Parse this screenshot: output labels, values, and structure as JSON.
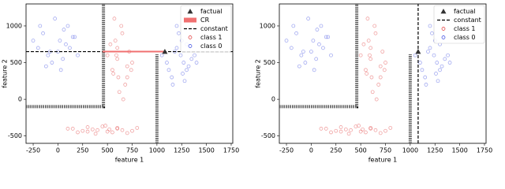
{
  "chart_data": [
    {
      "type": "scatter",
      "xlabel": "feature 1",
      "ylabel": "feature 2",
      "xlim": [
        -322,
        1766
      ],
      "ylim": [
        -600,
        1300
      ],
      "xticks": [
        -250,
        0,
        250,
        500,
        750,
        1000,
        1250,
        1500,
        1750
      ],
      "yticks": [
        -500,
        0,
        500,
        1000
      ],
      "legend": "upper right",
      "series": [
        {
          "name": "class 0",
          "color": "#3040e0",
          "style": "points",
          "x": [
            -150,
            -80,
            20,
            100,
            -200,
            50,
            150,
            -30,
            -120,
            80,
            200,
            -250,
            0,
            60,
            -60,
            120,
            -180,
            30,
            170,
            -100,
            1100,
            1200,
            1300,
            1250,
            1150,
            1350,
            1050,
            1280,
            1220,
            1320,
            1180,
            1400,
            1120,
            1260,
            1240,
            1300,
            1160,
            1380,
            1200,
            1270
          ],
          "y": [
            900,
            650,
            800,
            1000,
            700,
            550,
            850,
            1100,
            450,
            750,
            600,
            800,
            650,
            950,
            500,
            700,
            1000,
            400,
            850,
            600,
            500,
            700,
            400,
            800,
            300,
            550,
            600,
            250,
            900,
            450,
            650,
            500,
            400,
            350,
            600,
            750,
            200,
            600,
            1000,
            500
          ]
        },
        {
          "name": "class 1",
          "color": "#e03030",
          "style": "points",
          "x": [
            550,
            600,
            700,
            650,
            500,
            750,
            620,
            580,
            680,
            720,
            560,
            640,
            600,
            700,
            530,
            660,
            610,
            590,
            740,
            570,
            100,
            200,
            300,
            400,
            500,
            600,
            700,
            800,
            250,
            350,
            450,
            550,
            650,
            150,
            750,
            380,
            480,
            520,
            300,
            600
          ],
          "y": [
            400,
            700,
            300,
            900,
            600,
            500,
            100,
            800,
            200,
            650,
            350,
            1000,
            550,
            450,
            750,
            0,
            300,
            600,
            400,
            1100,
            -400,
            -450,
            -380,
            -420,
            -440,
            -400,
            -460,
            -390,
            -430,
            -410,
            -370,
            -450,
            -420,
            -400,
            -430,
            -470,
            -360,
            -410,
            -440,
            -390
          ]
        },
        {
          "color": "#000000",
          "style": "hatched",
          "x": [
            -322,
            460,
            460
          ],
          "y": [
            -100,
            -100,
            1300
          ]
        },
        {
          "color": "#000000",
          "style": "hatched",
          "x": [
            1000,
            1000
          ],
          "y": [
            -600,
            620
          ]
        },
        {
          "name": "constant",
          "color": "#000000",
          "style": "dashed",
          "x": [
            -322,
            1766
          ],
          "y": [
            650,
            650
          ]
        },
        {
          "name": "CR",
          "color": "#f07070",
          "style": "line",
          "x": [
            450,
            1080
          ],
          "y": [
            650,
            650
          ]
        },
        {
          "name": "factual",
          "color": "#333333",
          "style": "triangle",
          "x": [
            1080
          ],
          "y": [
            650
          ]
        }
      ]
    },
    {
      "type": "scatter",
      "xlabel": "feature 1",
      "ylabel": "feature 2",
      "xlim": [
        -322,
        1766
      ],
      "ylim": [
        -600,
        1300
      ],
      "xticks": [
        -250,
        0,
        250,
        500,
        750,
        1000,
        1250,
        1500,
        1750
      ],
      "yticks": [
        -500,
        0,
        500,
        1000
      ],
      "legend": "upper right",
      "series": [
        {
          "name": "class 0",
          "color": "#3040e0",
          "style": "points",
          "x": [
            -150,
            -80,
            20,
            100,
            -200,
            50,
            150,
            -30,
            -120,
            80,
            200,
            -250,
            0,
            60,
            -60,
            120,
            -180,
            30,
            170,
            -100,
            1100,
            1200,
            1300,
            1250,
            1150,
            1350,
            1050,
            1280,
            1220,
            1320,
            1180,
            1400,
            1120,
            1260,
            1240,
            1300,
            1160,
            1380,
            1200,
            1270
          ],
          "y": [
            900,
            650,
            800,
            1000,
            700,
            550,
            850,
            1100,
            450,
            750,
            600,
            800,
            650,
            950,
            500,
            700,
            1000,
            400,
            850,
            600,
            500,
            700,
            400,
            800,
            300,
            550,
            600,
            250,
            900,
            450,
            650,
            500,
            400,
            350,
            600,
            750,
            200,
            600,
            1000,
            500
          ]
        },
        {
          "name": "class 1",
          "color": "#e03030",
          "style": "points",
          "x": [
            550,
            600,
            700,
            650,
            500,
            750,
            620,
            580,
            680,
            720,
            560,
            640,
            600,
            700,
            530,
            660,
            610,
            590,
            740,
            570,
            100,
            200,
            300,
            400,
            500,
            600,
            700,
            800,
            250,
            350,
            450,
            550,
            650,
            150,
            750,
            380,
            480,
            520,
            300,
            600
          ],
          "y": [
            400,
            700,
            300,
            900,
            600,
            500,
            100,
            800,
            200,
            650,
            350,
            1000,
            550,
            450,
            750,
            0,
            300,
            600,
            400,
            1100,
            -400,
            -450,
            -380,
            -420,
            -440,
            -400,
            -460,
            -390,
            -430,
            -410,
            -370,
            -450,
            -420,
            -400,
            -430,
            -470,
            -360,
            -410,
            -440,
            -390
          ]
        },
        {
          "color": "#000000",
          "style": "hatched",
          "x": [
            -322,
            460,
            460
          ],
          "y": [
            -100,
            -100,
            1300
          ]
        },
        {
          "color": "#000000",
          "style": "hatched",
          "x": [
            1000,
            1000
          ],
          "y": [
            -600,
            620
          ]
        },
        {
          "name": "constant",
          "color": "#000000",
          "style": "dashed",
          "x": [
            1080,
            1080
          ],
          "y": [
            -600,
            1300
          ]
        },
        {
          "name": "factual",
          "color": "#333333",
          "style": "triangle",
          "x": [
            1080
          ],
          "y": [
            650
          ]
        }
      ]
    }
  ]
}
